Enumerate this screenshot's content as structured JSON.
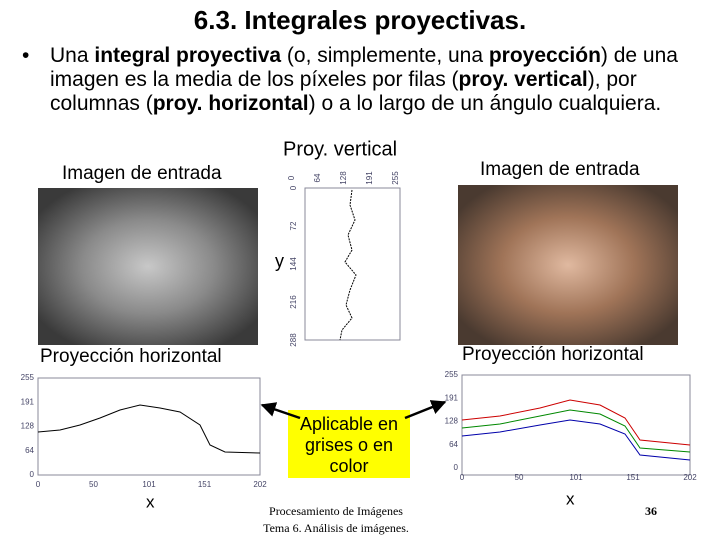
{
  "title": "6.3. Integrales proyectivas.",
  "bullet": {
    "symbol": "•",
    "parts": [
      "Una ",
      "integral proyectiva",
      " (o, simplemente, una ",
      "proyección",
      ") de una imagen es la media de los píxeles por filas (",
      "proy. vertical",
      "), por columnas (",
      "proy. horizontal",
      ") o a lo largo de un ángulo cualquiera."
    ]
  },
  "labels": {
    "input_left": "Imagen de entrada",
    "input_right": "Imagen de entrada",
    "vertical": "Proy. vertical",
    "y_axis": "y",
    "horizontal_left": "Proyección horizontal",
    "horizontal_right": "Proyección horizontal",
    "x_left": "x",
    "x_right": "x",
    "note": "Aplicable en grises o en color"
  },
  "vertical_plot": {
    "top_ticks": [
      "0",
      "64",
      "128",
      "191",
      "255"
    ],
    "side_ticks": [
      "0",
      "72",
      "144",
      "216",
      "288"
    ]
  },
  "left_plot": {
    "yticks": [
      "255",
      "191",
      "128",
      "64",
      "0"
    ],
    "xticks": [
      "0",
      "50",
      "101",
      "151",
      "202"
    ]
  },
  "right_plot": {
    "yticks": [
      "255",
      "191",
      "128",
      "64",
      "0"
    ],
    "xticks": [
      "0",
      "50",
      "101",
      "151",
      "202"
    ]
  },
  "footer": {
    "line1": "Procesamiento de Imágenes",
    "line2": "Tema 6. Análisis de imágenes.",
    "page": "36"
  }
}
